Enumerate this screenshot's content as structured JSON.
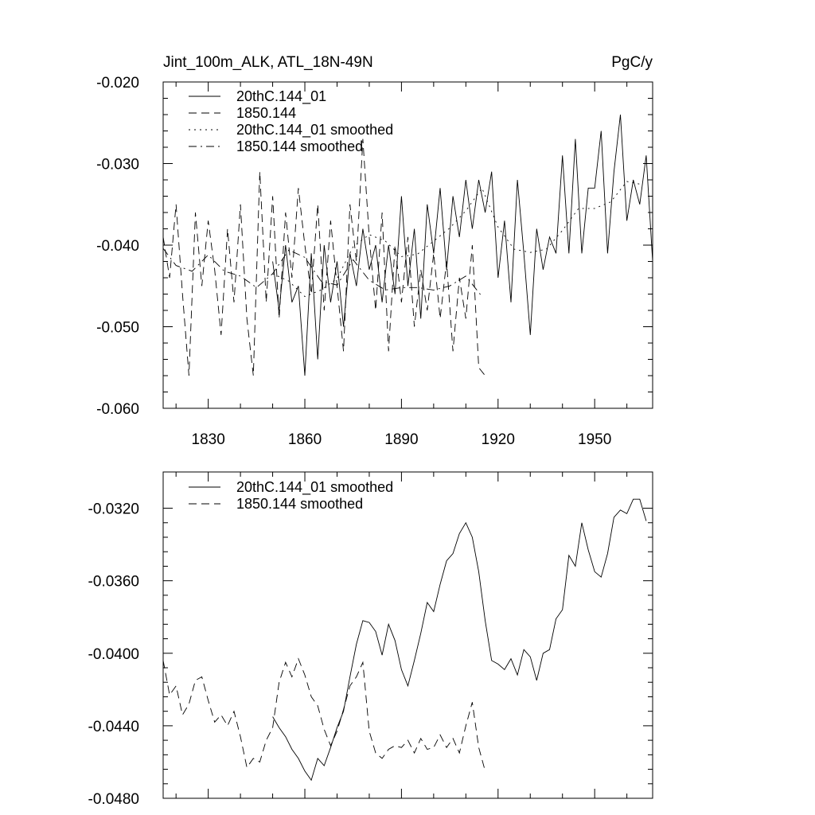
{
  "chart_data": [
    {
      "type": "line",
      "title_left": "Jint_100m_ALK, ATL_18N-49N",
      "title_right": "PgC/y",
      "xlim": [
        1816,
        1968
      ],
      "ylim": [
        -0.06,
        -0.02
      ],
      "xticks": [
        1830,
        1860,
        1890,
        1920,
        1950
      ],
      "xtick_labels": [
        "1830",
        "1860",
        "1890",
        "1920",
        "1950"
      ],
      "yticks": [
        -0.06,
        -0.05,
        -0.04,
        -0.03,
        -0.02
      ],
      "ytick_labels": [
        "-0.060",
        "-0.050",
        "-0.040",
        "-0.030",
        "-0.020"
      ],
      "legend": [
        "20thC.144_01",
        "1850.144",
        "20thC.144_01 smoothed",
        "1850.144 smoothed"
      ],
      "series": [
        {
          "name": "20thC.144_01",
          "style": "solid",
          "x": [
            1850,
            1852,
            1854,
            1856,
            1858,
            1860,
            1862,
            1864,
            1866,
            1868,
            1870,
            1872,
            1874,
            1876,
            1878,
            1880,
            1882,
            1884,
            1886,
            1888,
            1890,
            1892,
            1894,
            1896,
            1898,
            1900,
            1902,
            1904,
            1906,
            1908,
            1910,
            1912,
            1914,
            1916,
            1918,
            1920,
            1922,
            1924,
            1926,
            1928,
            1930,
            1932,
            1934,
            1936,
            1938,
            1940,
            1942,
            1944,
            1946,
            1948,
            1950,
            1952,
            1954,
            1956,
            1958,
            1960,
            1962,
            1964,
            1966,
            1968
          ],
          "values": [
            -0.042,
            -0.048,
            -0.04,
            -0.047,
            -0.045,
            -0.056,
            -0.041,
            -0.054,
            -0.04,
            -0.047,
            -0.042,
            -0.05,
            -0.041,
            -0.045,
            -0.038,
            -0.043,
            -0.04,
            -0.047,
            -0.04,
            -0.046,
            -0.034,
            -0.045,
            -0.038,
            -0.049,
            -0.035,
            -0.041,
            -0.033,
            -0.043,
            -0.034,
            -0.039,
            -0.032,
            -0.038,
            -0.032,
            -0.036,
            -0.031,
            -0.044,
            -0.037,
            -0.047,
            -0.032,
            -0.041,
            -0.051,
            -0.038,
            -0.043,
            -0.039,
            -0.041,
            -0.029,
            -0.041,
            -0.027,
            -0.041,
            -0.033,
            -0.033,
            -0.026,
            -0.041,
            -0.031,
            -0.024,
            -0.037,
            -0.032,
            -0.035,
            -0.029,
            -0.042
          ]
        },
        {
          "name": "1850.144",
          "style": "dashed",
          "x": [
            1816,
            1818,
            1820,
            1822,
            1824,
            1826,
            1828,
            1830,
            1832,
            1834,
            1836,
            1838,
            1840,
            1842,
            1844,
            1846,
            1848,
            1850,
            1852,
            1854,
            1856,
            1858,
            1860,
            1862,
            1864,
            1866,
            1868,
            1870,
            1872,
            1874,
            1876,
            1878,
            1880,
            1882,
            1884,
            1886,
            1888,
            1890,
            1892,
            1894,
            1896,
            1898,
            1900,
            1902,
            1904,
            1906,
            1908,
            1910,
            1912,
            1914,
            1916
          ],
          "values": [
            -0.039,
            -0.044,
            -0.035,
            -0.046,
            -0.056,
            -0.036,
            -0.045,
            -0.037,
            -0.043,
            -0.051,
            -0.038,
            -0.047,
            -0.035,
            -0.049,
            -0.056,
            -0.031,
            -0.047,
            -0.034,
            -0.049,
            -0.036,
            -0.044,
            -0.033,
            -0.04,
            -0.046,
            -0.035,
            -0.048,
            -0.037,
            -0.045,
            -0.053,
            -0.035,
            -0.042,
            -0.027,
            -0.039,
            -0.048,
            -0.036,
            -0.053,
            -0.04,
            -0.047,
            -0.039,
            -0.05,
            -0.043,
            -0.048,
            -0.041,
            -0.049,
            -0.042,
            -0.053,
            -0.044,
            -0.049,
            -0.04,
            -0.055,
            -0.056
          ]
        },
        {
          "name": "20thC.144_01 smoothed",
          "style": "dotted",
          "x": [
            1850,
            1855,
            1860,
            1865,
            1870,
            1875,
            1880,
            1885,
            1890,
            1895,
            1900,
            1905,
            1910,
            1915,
            1920,
            1925,
            1930,
            1935,
            1940,
            1945,
            1950,
            1955,
            1960,
            1965
          ],
          "values": [
            -0.0435,
            -0.0444,
            -0.0463,
            -0.0455,
            -0.0441,
            -0.0402,
            -0.0387,
            -0.0395,
            -0.0414,
            -0.0411,
            -0.0395,
            -0.0379,
            -0.0358,
            -0.033,
            -0.0378,
            -0.0405,
            -0.0409,
            -0.0405,
            -0.0382,
            -0.0355,
            -0.0355,
            -0.0347,
            -0.0322,
            -0.0326
          ]
        },
        {
          "name": "1850.144 smoothed",
          "style": "dashdot",
          "x": [
            1816,
            1820,
            1825,
            1830,
            1835,
            1840,
            1845,
            1850,
            1855,
            1860,
            1865,
            1870,
            1875,
            1880,
            1885,
            1890,
            1895,
            1900,
            1905,
            1910,
            1915
          ],
          "values": [
            -0.0404,
            -0.0425,
            -0.0432,
            -0.0412,
            -0.0432,
            -0.0438,
            -0.0452,
            -0.0435,
            -0.0406,
            -0.0415,
            -0.0444,
            -0.0449,
            -0.0418,
            -0.0443,
            -0.0455,
            -0.0452,
            -0.0452,
            -0.0455,
            -0.045,
            -0.0438,
            -0.0463
          ]
        }
      ]
    },
    {
      "type": "line",
      "xlim": [
        1816,
        1968
      ],
      "ylim": [
        -0.048,
        -0.03
      ],
      "xticks": [
        1830,
        1860,
        1890,
        1920,
        1950
      ],
      "yticks": [
        -0.048,
        -0.044,
        -0.04,
        -0.036,
        -0.032
      ],
      "ytick_labels": [
        "-0.0480",
        "-0.0440",
        "-0.0400",
        "-0.0360",
        "-0.0320"
      ],
      "legend": [
        "20thC.144_01 smoothed",
        "1850.144 smoothed"
      ],
      "series": [
        {
          "name": "20thC.144_01 smoothed",
          "style": "solid",
          "x": [
            1850,
            1852,
            1854,
            1856,
            1858,
            1860,
            1862,
            1864,
            1866,
            1868,
            1870,
            1872,
            1874,
            1876,
            1878,
            1880,
            1882,
            1884,
            1886,
            1888,
            1890,
            1892,
            1894,
            1896,
            1898,
            1900,
            1902,
            1904,
            1906,
            1908,
            1910,
            1912,
            1914,
            1916,
            1918,
            1920,
            1922,
            1924,
            1926,
            1928,
            1930,
            1932,
            1934,
            1936,
            1938,
            1940,
            1942,
            1944,
            1946,
            1948,
            1950,
            1952,
            1954,
            1956,
            1958,
            1960,
            1962,
            1964,
            1966
          ],
          "values": [
            -0.0435,
            -0.0441,
            -0.0446,
            -0.0453,
            -0.0458,
            -0.0465,
            -0.047,
            -0.0458,
            -0.0462,
            -0.0452,
            -0.0441,
            -0.0432,
            -0.0413,
            -0.0395,
            -0.0382,
            -0.0383,
            -0.0388,
            -0.0401,
            -0.0384,
            -0.0393,
            -0.0409,
            -0.0418,
            -0.0404,
            -0.0389,
            -0.0372,
            -0.0377,
            -0.0362,
            -0.0349,
            -0.0345,
            -0.0334,
            -0.0328,
            -0.0336,
            -0.0355,
            -0.0382,
            -0.0404,
            -0.0406,
            -0.0409,
            -0.0403,
            -0.0412,
            -0.0398,
            -0.0402,
            -0.0415,
            -0.04,
            -0.0398,
            -0.0381,
            -0.0376,
            -0.0346,
            -0.0352,
            -0.0328,
            -0.0343,
            -0.0355,
            -0.0358,
            -0.0345,
            -0.0325,
            -0.0321,
            -0.0323,
            -0.0315,
            -0.0315,
            -0.0327
          ]
        },
        {
          "name": "1850.144 smoothed",
          "style": "dashed",
          "x": [
            1816,
            1818,
            1820,
            1822,
            1824,
            1826,
            1828,
            1830,
            1832,
            1834,
            1836,
            1838,
            1840,
            1842,
            1844,
            1846,
            1848,
            1850,
            1852,
            1854,
            1856,
            1858,
            1860,
            1862,
            1864,
            1866,
            1868,
            1870,
            1872,
            1874,
            1876,
            1878,
            1880,
            1882,
            1884,
            1886,
            1888,
            1890,
            1892,
            1894,
            1896,
            1898,
            1900,
            1902,
            1904,
            1906,
            1908,
            1910,
            1912,
            1914,
            1916
          ],
          "values": [
            -0.0404,
            -0.0423,
            -0.0418,
            -0.0434,
            -0.0428,
            -0.0415,
            -0.0413,
            -0.0426,
            -0.0438,
            -0.0434,
            -0.044,
            -0.0432,
            -0.0446,
            -0.0463,
            -0.0458,
            -0.046,
            -0.0448,
            -0.0441,
            -0.0416,
            -0.0405,
            -0.0413,
            -0.0403,
            -0.0412,
            -0.0424,
            -0.0429,
            -0.0442,
            -0.0451,
            -0.0443,
            -0.0431,
            -0.0418,
            -0.0413,
            -0.0405,
            -0.0443,
            -0.0455,
            -0.0458,
            -0.0453,
            -0.0451,
            -0.0452,
            -0.0448,
            -0.0455,
            -0.0447,
            -0.0453,
            -0.0452,
            -0.0445,
            -0.0452,
            -0.0447,
            -0.0455,
            -0.044,
            -0.0427,
            -0.0452,
            -0.0465
          ]
        }
      ]
    }
  ]
}
